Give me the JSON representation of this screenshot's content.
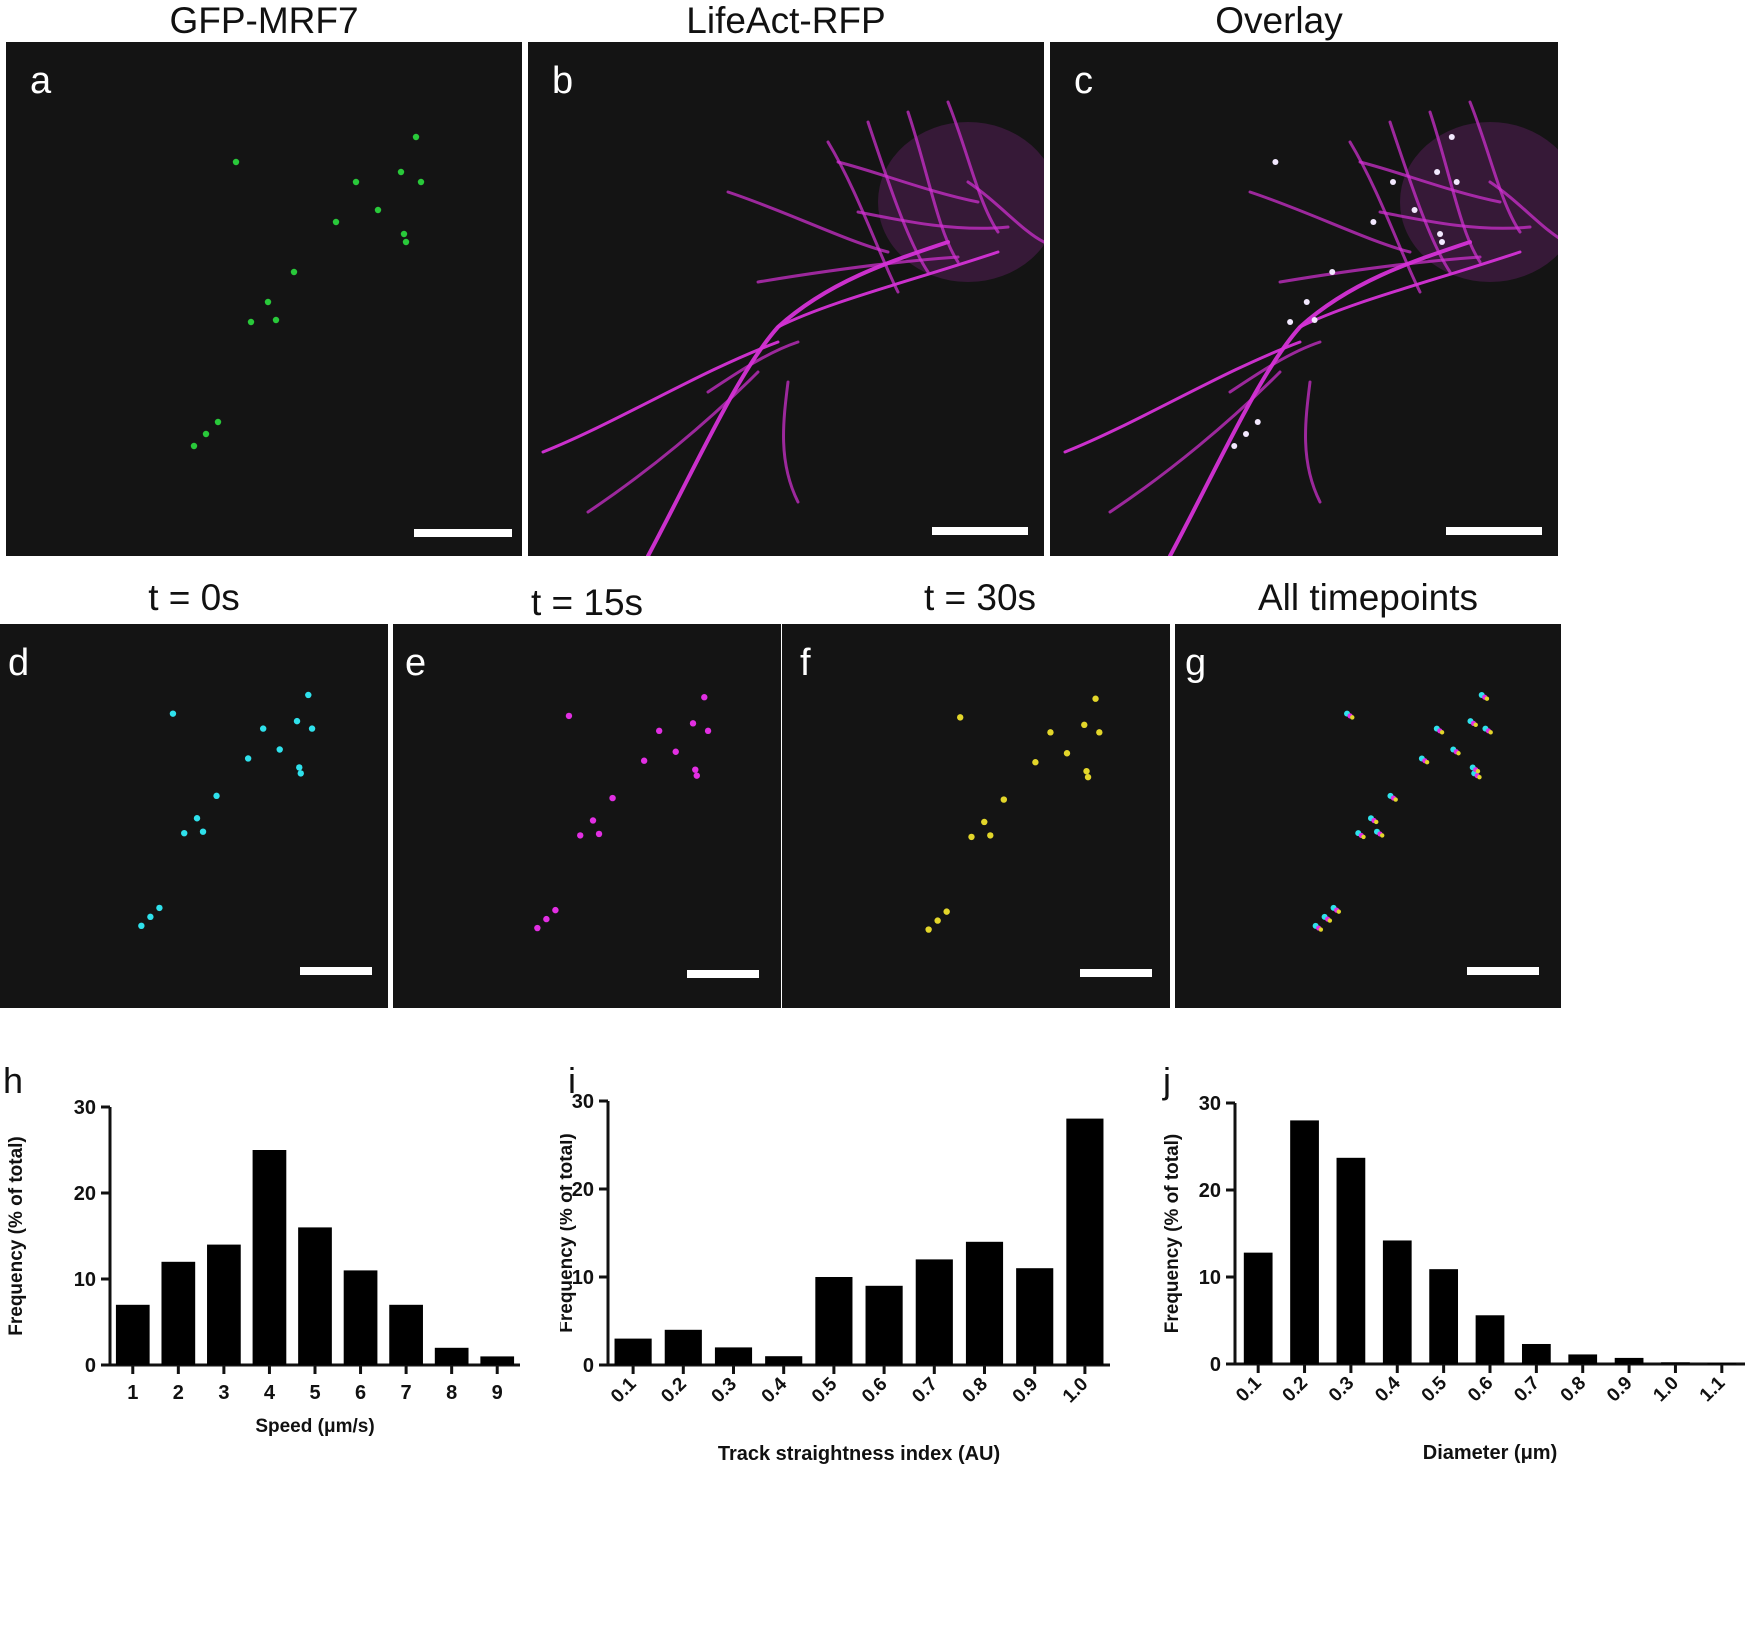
{
  "panels": {
    "a": {
      "letter": "a",
      "title": "GFP-MRF7",
      "color": "#29c93a"
    },
    "b": {
      "letter": "b",
      "title": "LifeAct-RFP",
      "color": "#d531d6"
    },
    "c": {
      "letter": "c",
      "title": "Overlay"
    },
    "d": {
      "letter": "d",
      "title": "t = 0s",
      "color": "#2fe1ec"
    },
    "e": {
      "letter": "e",
      "title": "t = 15s",
      "color": "#e22fe3"
    },
    "f": {
      "letter": "f",
      "title": "t = 30s",
      "color": "#e3d62a"
    },
    "g": {
      "letter": "g",
      "title": "All timepoints"
    }
  },
  "chart_data": [
    {
      "letter": "h",
      "type": "bar",
      "categories": [
        "1",
        "2",
        "3",
        "4",
        "5",
        "6",
        "7",
        "8",
        "9"
      ],
      "values": [
        7,
        12,
        14,
        25,
        16,
        11,
        7,
        2,
        1
      ],
      "xlabel": "Speed (μm/s)",
      "ylabel": "Frequency (% of total)",
      "yticks": [
        "0",
        "10",
        "20",
        "30"
      ],
      "ylim": [
        0,
        30
      ],
      "grid": false,
      "bar_color": "#000000"
    },
    {
      "letter": "i",
      "type": "bar",
      "categories": [
        "0.1",
        "0.2",
        "0.3",
        "0.4",
        "0.5",
        "0.6",
        "0.7",
        "0.8",
        "0.9",
        "1.0"
      ],
      "values": [
        3,
        4,
        2,
        1,
        10,
        9,
        12,
        14,
        11,
        28
      ],
      "xlabel": "Track straightness index (AU)",
      "ylabel": "Frequency (% of total)",
      "yticks": [
        "0",
        "10",
        "20",
        "30"
      ],
      "ylim": [
        0,
        30
      ],
      "grid": false,
      "bar_color": "#000000"
    },
    {
      "letter": "j",
      "type": "bar",
      "categories": [
        "0.1",
        "0.2",
        "0.3",
        "0.4",
        "0.5",
        "0.6",
        "0.7",
        "0.8",
        "0.9",
        "1.0",
        "1.1"
      ],
      "values": [
        12.8,
        28,
        23.7,
        14.2,
        10.9,
        5.6,
        2.3,
        1.1,
        0.7,
        0.2,
        0.1
      ],
      "xlabel": "Diameter (μm)",
      "ylabel": "Frequency (% of total)",
      "yticks": [
        "0",
        "10",
        "20",
        "30"
      ],
      "ylim": [
        0,
        30
      ],
      "grid": false,
      "bar_color": "#000000"
    }
  ]
}
